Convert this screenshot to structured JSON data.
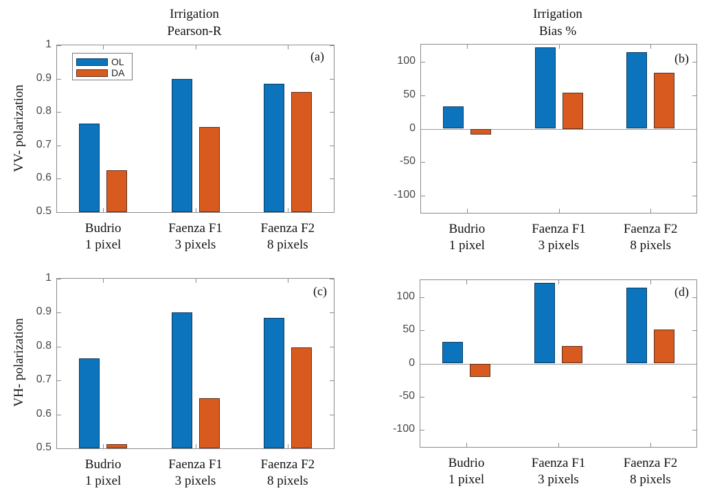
{
  "colors": {
    "ol": "#0b74bc",
    "da": "#d95a1e",
    "axis": "#8a8a8a",
    "tick_label": "#474747",
    "zero_line": "#9a9a9a"
  },
  "legend": {
    "items": [
      {
        "label": "OL",
        "color_key": "ol"
      },
      {
        "label": "DA",
        "color_key": "da"
      }
    ]
  },
  "chart_data": [
    {
      "id": "a",
      "type": "bar",
      "panel_label": "(a)",
      "title_lines": [
        "Irrigation",
        "Pearson-R"
      ],
      "ylabel": "VV- polarization",
      "categories": [
        [
          "Budrio",
          "1 pixel"
        ],
        [
          "Faenza F1",
          "3 pixels"
        ],
        [
          "Faenza F2",
          "8 pixels"
        ]
      ],
      "series": [
        {
          "name": "OL",
          "color_key": "ol",
          "values": [
            0.765,
            0.9,
            0.885
          ]
        },
        {
          "name": "DA",
          "color_key": "da",
          "values": [
            0.625,
            0.755,
            0.86
          ]
        }
      ],
      "ylim": [
        0.5,
        1.0
      ],
      "yticks": [
        0.5,
        0.6,
        0.7,
        0.8,
        0.9,
        1.0
      ],
      "ytick_labels": [
        "0.5",
        "0.6",
        "0.7",
        "0.8",
        "0.9",
        "1"
      ],
      "legend_visible": true,
      "grid": false,
      "legend_position": "top-left"
    },
    {
      "id": "b",
      "type": "bar",
      "panel_label": "(b)",
      "title_lines": [
        "Irrigation",
        "Bias %"
      ],
      "ylabel": "",
      "categories": [
        [
          "Budrio",
          "1 pixel"
        ],
        [
          "Faenza F1",
          "3 pixels"
        ],
        [
          "Faenza F2",
          "8 pixels"
        ]
      ],
      "series": [
        {
          "name": "OL",
          "color_key": "ol",
          "values": [
            33,
            122,
            115
          ]
        },
        {
          "name": "DA",
          "color_key": "da",
          "values": [
            -9,
            54,
            84
          ]
        }
      ],
      "ylim": [
        -126,
        126
      ],
      "yticks": [
        -100,
        -50,
        0,
        50,
        100
      ],
      "ytick_labels": [
        "-100",
        "-50",
        "0",
        "50",
        "100"
      ],
      "legend_visible": false,
      "grid": false,
      "legend_position": null
    },
    {
      "id": "c",
      "type": "bar",
      "panel_label": "(c)",
      "title_lines": [
        "",
        ""
      ],
      "ylabel": "VH- polarization",
      "categories": [
        [
          "Budrio",
          "1 pixel"
        ],
        [
          "Faenza F1",
          "3 pixels"
        ],
        [
          "Faenza F2",
          "8 pixels"
        ]
      ],
      "series": [
        {
          "name": "OL",
          "color_key": "ol",
          "values": [
            0.765,
            0.9,
            0.885
          ]
        },
        {
          "name": "DA",
          "color_key": "da",
          "values": [
            0.513,
            0.648,
            0.798
          ]
        }
      ],
      "ylim": [
        0.5,
        1.0
      ],
      "yticks": [
        0.5,
        0.6,
        0.7,
        0.8,
        0.9,
        1.0
      ],
      "ytick_labels": [
        "0.5",
        "0.6",
        "0.7",
        "0.8",
        "0.9",
        "1"
      ],
      "legend_visible": false,
      "grid": false,
      "legend_position": null
    },
    {
      "id": "d",
      "type": "bar",
      "panel_label": "(d)",
      "title_lines": [
        "",
        ""
      ],
      "ylabel": "",
      "categories": [
        [
          "Budrio",
          "1 pixel"
        ],
        [
          "Faenza F1",
          "3 pixels"
        ],
        [
          "Faenza F2",
          "8 pixels"
        ]
      ],
      "series": [
        {
          "name": "OL",
          "color_key": "ol",
          "values": [
            33,
            122,
            115
          ]
        },
        {
          "name": "DA",
          "color_key": "da",
          "values": [
            -20,
            26,
            51
          ]
        }
      ],
      "ylim": [
        -126,
        126
      ],
      "yticks": [
        -100,
        -50,
        0,
        50,
        100
      ],
      "ytick_labels": [
        "-100",
        "-50",
        "0",
        "50",
        "100"
      ],
      "legend_visible": false,
      "grid": false,
      "legend_position": null
    }
  ]
}
